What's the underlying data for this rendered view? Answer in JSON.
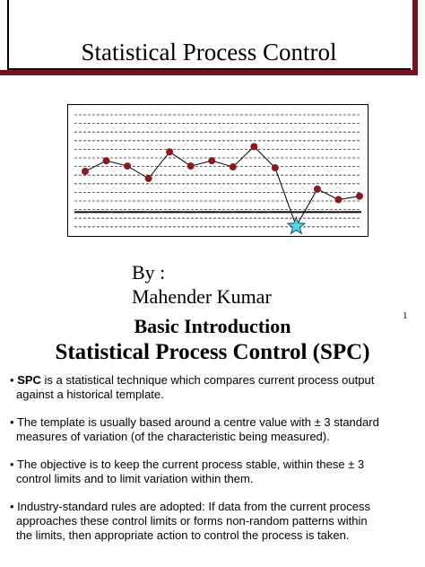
{
  "slide1": {
    "title": "Statistical Process Control",
    "author_line1": "By :",
    "author_line2": "Mahender Kumar",
    "page_number": "1",
    "illustration": {
      "point_color": "#8b1a1a",
      "star_color": "#4fd6e8",
      "points": [
        {
          "x": 1,
          "y": 6.4
        },
        {
          "x": 2,
          "y": 7.6
        },
        {
          "x": 3,
          "y": 7.0
        },
        {
          "x": 4,
          "y": 5.6
        },
        {
          "x": 5,
          "y": 8.6
        },
        {
          "x": 6,
          "y": 7.0
        },
        {
          "x": 7,
          "y": 7.6
        },
        {
          "x": 8,
          "y": 6.9
        },
        {
          "x": 9,
          "y": 9.2
        },
        {
          "x": 10,
          "y": 6.8
        },
        {
          "x": 11,
          "y": 0.2
        },
        {
          "x": 12,
          "y": 4.4
        },
        {
          "x": 13,
          "y": 3.2
        },
        {
          "x": 14,
          "y": 3.6
        }
      ],
      "out_of_control_index": 10,
      "control_limit": 1.8,
      "y_range": [
        -1,
        14
      ]
    }
  },
  "slide2": {
    "subtitle": "Basic Introduction",
    "title": "Statistical Process Control (SPC)",
    "bullets": [
      {
        "marker": "•",
        "term": "SPC",
        "lines": [
          " is a statistical technique which compares current process output",
          "against a historical template."
        ]
      },
      {
        "marker": "•",
        "term": "",
        "lines": [
          " The template is usually based around a centre value with ± 3 standard",
          "measures of variation (of the characteristic being measured)."
        ]
      },
      {
        "marker": "•",
        "term": "",
        "lines": [
          " The objective is to keep the current process stable, within these ± 3",
          "control limits and to limit variation within them."
        ]
      },
      {
        "marker": "•",
        "term": "",
        "lines": [
          " Industry-standard rules are adopted:  If data from the current process",
          "approaches these control limits or forms non-random patterns within",
          "the limits, then appropriate action to control the process is taken."
        ]
      }
    ]
  }
}
